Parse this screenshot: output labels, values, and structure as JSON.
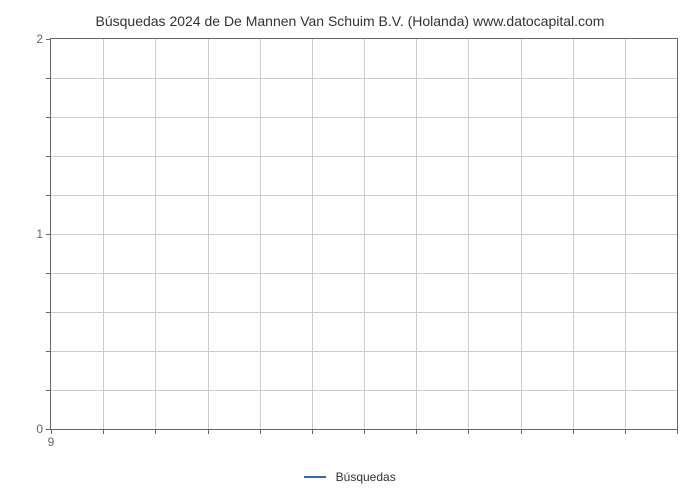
{
  "chart": {
    "type": "line",
    "title": "Búsquedas 2024 de De Mannen Van Schuim B.V. (Holanda) www.datocapital.com",
    "title_fontsize": 14,
    "title_color": "#333333",
    "background_color": "#ffffff",
    "plot_border_color": "#666666",
    "grid_color": "#cccccc",
    "tick_color": "#666666",
    "tick_label_color": "#666666",
    "tick_label_fontsize": 12,
    "y": {
      "min": 0,
      "max": 2,
      "major_ticks": [
        0,
        1,
        2
      ],
      "minor_ticks": [
        0.2,
        0.4,
        0.6,
        0.8,
        1.2,
        1.4,
        1.6,
        1.8
      ]
    },
    "x": {
      "min": 9,
      "max": 21,
      "major_ticks": [
        9
      ],
      "minor_ticks": [
        10,
        11,
        12,
        13,
        14,
        15,
        16,
        17,
        18,
        19,
        20,
        21
      ]
    },
    "series": [
      {
        "name": "Búsquedas",
        "color": "#3366cc",
        "line_width": 2,
        "data": []
      }
    ],
    "legend": {
      "position": "bottom-center",
      "label": "Búsquedas",
      "swatch_color": "#3366cc",
      "fontsize": 12,
      "text_color": "#333333"
    }
  }
}
